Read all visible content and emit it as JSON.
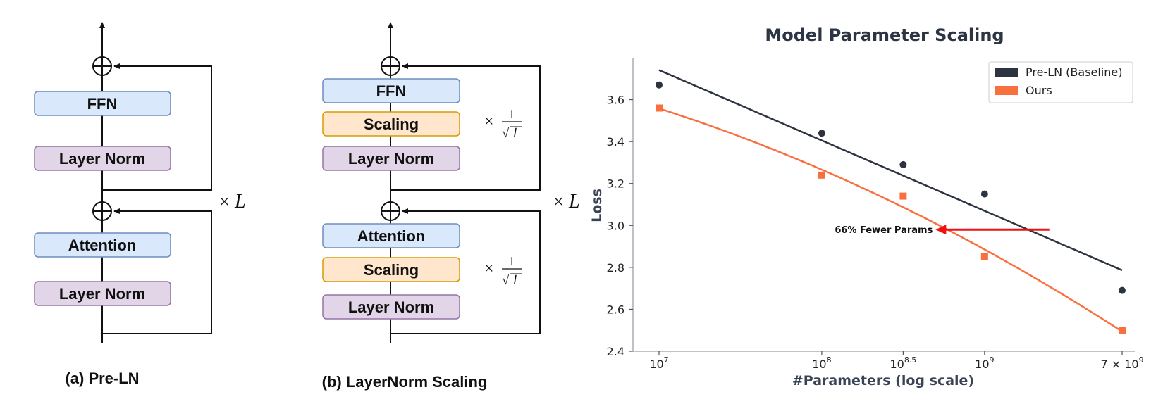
{
  "diagram_a": {
    "ffn": "FFN",
    "layer_norm_top": "Layer Norm",
    "attention": "Attention",
    "layer_norm_bottom": "Layer Norm",
    "repeat_symbol": "×",
    "repeat_var": "L",
    "caption": "(a) Pre-LN"
  },
  "diagram_b": {
    "ffn": "FFN",
    "scaling_top": "Scaling",
    "layer_norm_top": "Layer Norm",
    "attention": "Attention",
    "scaling_bottom": "Scaling",
    "layer_norm_bottom": "Layer Norm",
    "scale_symbol": "×",
    "scale_numerator": "1",
    "scale_root": "√",
    "scale_var": "l",
    "repeat_symbol": "×",
    "repeat_var": "L",
    "caption": "(b) LayerNorm Scaling"
  },
  "colors": {
    "blue_fill": "#dae8fc",
    "blue_stroke": "#6c8ebf",
    "purple_fill": "#e1d5e7",
    "purple_stroke": "#9673a6",
    "orange_fill": "#ffe6cc",
    "orange_stroke": "#d79b00",
    "baseline": "#2d3440",
    "ours": "#f97040",
    "arrow": "#ee1111"
  },
  "chart_data": {
    "type": "scatter",
    "title": "Model Parameter Scaling",
    "xlabel": "#Parameters (log scale)",
    "ylabel": "Loss",
    "x_scale": "log",
    "x_ticks": [
      {
        "value": 10000000,
        "base": "10",
        "exp": "7"
      },
      {
        "value": 100000000,
        "base": "10",
        "exp": "8"
      },
      {
        "value": 316227766,
        "base": "10",
        "exp": "8.5"
      },
      {
        "value": 1000000000,
        "base": "10",
        "exp": "9"
      },
      {
        "value": 7000000000,
        "base": "7 × 10",
        "exp": "9"
      }
    ],
    "y_ticks": [
      "2.4",
      "2.6",
      "2.8",
      "3.0",
      "3.2",
      "3.4",
      "3.6"
    ],
    "ylim": [
      2.4,
      3.8
    ],
    "legend_position": "top-right",
    "series": [
      {
        "name": "Pre-LN (Baseline)",
        "marker": "circle",
        "color": "#2d3440",
        "x": [
          10000000,
          100000000,
          316227766,
          1000000000,
          7000000000
        ],
        "y": [
          3.67,
          3.44,
          3.29,
          3.15,
          2.69
        ],
        "fit": "linear"
      },
      {
        "name": "Ours",
        "marker": "square",
        "color": "#f97040",
        "x": [
          10000000,
          100000000,
          316227766,
          1000000000,
          7000000000
        ],
        "y": [
          3.56,
          3.24,
          3.14,
          2.85,
          2.5
        ],
        "fit": "quadratic"
      }
    ],
    "annotation": {
      "text": "66% Fewer Params",
      "arrow_from": {
        "x": 2500000000,
        "y": 2.98
      },
      "arrow_to": {
        "x": 500000000,
        "y": 2.98
      }
    }
  }
}
